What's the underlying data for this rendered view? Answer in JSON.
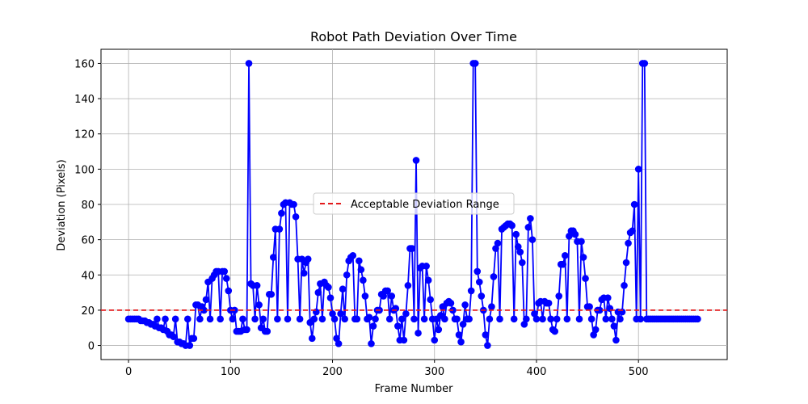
{
  "chart_data": {
    "type": "line",
    "title": "Robot Path Deviation Over Time",
    "xlabel": "Frame Number",
    "ylabel": "Deviation (Pixels)",
    "xlim": [
      -27,
      587
    ],
    "ylim": [
      -8,
      168
    ],
    "xticks": [
      0,
      100,
      200,
      300,
      400,
      500
    ],
    "yticks": [
      0,
      20,
      40,
      60,
      80,
      100,
      120,
      140,
      160
    ],
    "grid": true,
    "legend_location": "center",
    "reference_line": {
      "y": 20,
      "label": "Acceptable Deviation Range",
      "style": "dashed",
      "color": "#e41a1c"
    },
    "series": [
      {
        "line_color": "#0000ff",
        "marker": "circle",
        "points": [
          [
            0,
            15
          ],
          [
            2,
            15
          ],
          [
            4,
            15
          ],
          [
            6,
            15
          ],
          [
            8,
            15
          ],
          [
            10,
            15
          ],
          [
            12,
            14
          ],
          [
            14,
            14
          ],
          [
            16,
            14
          ],
          [
            18,
            13
          ],
          [
            20,
            13
          ],
          [
            22,
            12
          ],
          [
            24,
            12
          ],
          [
            26,
            11
          ],
          [
            28,
            15
          ],
          [
            30,
            10
          ],
          [
            32,
            10
          ],
          [
            34,
            9
          ],
          [
            36,
            15
          ],
          [
            38,
            8
          ],
          [
            40,
            6
          ],
          [
            42,
            6
          ],
          [
            44,
            5
          ],
          [
            46,
            15
          ],
          [
            48,
            2
          ],
          [
            50,
            2
          ],
          [
            52,
            1
          ],
          [
            54,
            1
          ],
          [
            56,
            0
          ],
          [
            58,
            15
          ],
          [
            60,
            0
          ],
          [
            62,
            4
          ],
          [
            64,
            4
          ],
          [
            66,
            23
          ],
          [
            68,
            23
          ],
          [
            70,
            15
          ],
          [
            72,
            22
          ],
          [
            74,
            20
          ],
          [
            76,
            26
          ],
          [
            78,
            36
          ],
          [
            80,
            15
          ],
          [
            82,
            38
          ],
          [
            84,
            40
          ],
          [
            86,
            42
          ],
          [
            88,
            42
          ],
          [
            90,
            15
          ],
          [
            92,
            42
          ],
          [
            94,
            42
          ],
          [
            96,
            38
          ],
          [
            98,
            31
          ],
          [
            100,
            20
          ],
          [
            102,
            15
          ],
          [
            104,
            20
          ],
          [
            106,
            8
          ],
          [
            108,
            8
          ],
          [
            110,
            8
          ],
          [
            112,
            15
          ],
          [
            114,
            9
          ],
          [
            116,
            9
          ],
          [
            118,
            160
          ],
          [
            120,
            35
          ],
          [
            122,
            34
          ],
          [
            124,
            15
          ],
          [
            126,
            34
          ],
          [
            128,
            23
          ],
          [
            130,
            10
          ],
          [
            132,
            15
          ],
          [
            134,
            8
          ],
          [
            136,
            8
          ],
          [
            138,
            29
          ],
          [
            140,
            29
          ],
          [
            142,
            50
          ],
          [
            144,
            66
          ],
          [
            146,
            15
          ],
          [
            148,
            66
          ],
          [
            150,
            75
          ],
          [
            152,
            80
          ],
          [
            154,
            81
          ],
          [
            156,
            15
          ],
          [
            158,
            81
          ],
          [
            160,
            80
          ],
          [
            162,
            80
          ],
          [
            164,
            73
          ],
          [
            166,
            49
          ],
          [
            168,
            15
          ],
          [
            170,
            49
          ],
          [
            172,
            41
          ],
          [
            174,
            47
          ],
          [
            176,
            49
          ],
          [
            178,
            13
          ],
          [
            180,
            4
          ],
          [
            182,
            15
          ],
          [
            184,
            19
          ],
          [
            186,
            30
          ],
          [
            188,
            35
          ],
          [
            190,
            15
          ],
          [
            192,
            36
          ],
          [
            194,
            34
          ],
          [
            196,
            33
          ],
          [
            198,
            27
          ],
          [
            200,
            18
          ],
          [
            202,
            15
          ],
          [
            204,
            4
          ],
          [
            206,
            1
          ],
          [
            208,
            18
          ],
          [
            210,
            32
          ],
          [
            212,
            15
          ],
          [
            214,
            40
          ],
          [
            216,
            48
          ],
          [
            218,
            50
          ],
          [
            220,
            51
          ],
          [
            222,
            15
          ],
          [
            224,
            15
          ],
          [
            226,
            48
          ],
          [
            228,
            43
          ],
          [
            230,
            37
          ],
          [
            232,
            28
          ],
          [
            234,
            15
          ],
          [
            236,
            16
          ],
          [
            238,
            1
          ],
          [
            240,
            11
          ],
          [
            242,
            15
          ],
          [
            244,
            20
          ],
          [
            246,
            20
          ],
          [
            248,
            29
          ],
          [
            250,
            28
          ],
          [
            252,
            31
          ],
          [
            254,
            31
          ],
          [
            256,
            15
          ],
          [
            258,
            28
          ],
          [
            260,
            20
          ],
          [
            262,
            21
          ],
          [
            264,
            11
          ],
          [
            266,
            3
          ],
          [
            268,
            15
          ],
          [
            270,
            3
          ],
          [
            272,
            18
          ],
          [
            274,
            34
          ],
          [
            276,
            55
          ],
          [
            278,
            55
          ],
          [
            280,
            15
          ],
          [
            282,
            105
          ],
          [
            284,
            7
          ],
          [
            286,
            44
          ],
          [
            288,
            45
          ],
          [
            290,
            15
          ],
          [
            292,
            45
          ],
          [
            294,
            37
          ],
          [
            296,
            26
          ],
          [
            298,
            15
          ],
          [
            300,
            3
          ],
          [
            302,
            15
          ],
          [
            304,
            9
          ],
          [
            306,
            17
          ],
          [
            308,
            22
          ],
          [
            310,
            15
          ],
          [
            312,
            24
          ],
          [
            314,
            25
          ],
          [
            316,
            24
          ],
          [
            318,
            20
          ],
          [
            320,
            15
          ],
          [
            322,
            15
          ],
          [
            324,
            6
          ],
          [
            326,
            2
          ],
          [
            328,
            12
          ],
          [
            330,
            23
          ],
          [
            332,
            15
          ],
          [
            334,
            15
          ],
          [
            336,
            31
          ],
          [
            338,
            160
          ],
          [
            340,
            160
          ],
          [
            342,
            42
          ],
          [
            344,
            36
          ],
          [
            346,
            28
          ],
          [
            348,
            20
          ],
          [
            350,
            6
          ],
          [
            352,
            0
          ],
          [
            354,
            15
          ],
          [
            356,
            22
          ],
          [
            358,
            39
          ],
          [
            360,
            55
          ],
          [
            362,
            58
          ],
          [
            364,
            15
          ],
          [
            366,
            66
          ],
          [
            368,
            67
          ],
          [
            370,
            68
          ],
          [
            372,
            69
          ],
          [
            374,
            69
          ],
          [
            376,
            68
          ],
          [
            378,
            15
          ],
          [
            380,
            63
          ],
          [
            382,
            56
          ],
          [
            384,
            53
          ],
          [
            386,
            47
          ],
          [
            388,
            12
          ],
          [
            390,
            15
          ],
          [
            392,
            67
          ],
          [
            394,
            72
          ],
          [
            396,
            60
          ],
          [
            398,
            18
          ],
          [
            400,
            15
          ],
          [
            402,
            24
          ],
          [
            404,
            25
          ],
          [
            406,
            15
          ],
          [
            408,
            25
          ],
          [
            410,
            24
          ],
          [
            412,
            24
          ],
          [
            414,
            15
          ],
          [
            416,
            9
          ],
          [
            418,
            8
          ],
          [
            420,
            15
          ],
          [
            422,
            28
          ],
          [
            424,
            46
          ],
          [
            426,
            46
          ],
          [
            428,
            51
          ],
          [
            430,
            15
          ],
          [
            432,
            62
          ],
          [
            434,
            65
          ],
          [
            436,
            65
          ],
          [
            438,
            63
          ],
          [
            440,
            59
          ],
          [
            442,
            15
          ],
          [
            444,
            59
          ],
          [
            446,
            50
          ],
          [
            448,
            38
          ],
          [
            450,
            22
          ],
          [
            452,
            22
          ],
          [
            454,
            15
          ],
          [
            456,
            6
          ],
          [
            458,
            9
          ],
          [
            460,
            20
          ],
          [
            462,
            20
          ],
          [
            464,
            26
          ],
          [
            466,
            27
          ],
          [
            468,
            15
          ],
          [
            470,
            27
          ],
          [
            472,
            21
          ],
          [
            474,
            15
          ],
          [
            476,
            11
          ],
          [
            478,
            3
          ],
          [
            480,
            19
          ],
          [
            482,
            15
          ],
          [
            484,
            19
          ],
          [
            486,
            34
          ],
          [
            488,
            47
          ],
          [
            490,
            58
          ],
          [
            492,
            64
          ],
          [
            494,
            65
          ],
          [
            496,
            80
          ],
          [
            498,
            15
          ],
          [
            500,
            100
          ],
          [
            502,
            15
          ],
          [
            504,
            160
          ],
          [
            506,
            160
          ],
          [
            508,
            15
          ],
          [
            510,
            15
          ],
          [
            512,
            15
          ],
          [
            514,
            15
          ],
          [
            516,
            15
          ],
          [
            518,
            15
          ],
          [
            520,
            15
          ],
          [
            522,
            15
          ],
          [
            524,
            15
          ],
          [
            526,
            15
          ],
          [
            528,
            15
          ],
          [
            530,
            15
          ],
          [
            532,
            15
          ],
          [
            534,
            15
          ],
          [
            536,
            15
          ],
          [
            538,
            15
          ],
          [
            540,
            15
          ],
          [
            542,
            15
          ],
          [
            544,
            15
          ],
          [
            546,
            15
          ],
          [
            548,
            15
          ],
          [
            550,
            15
          ],
          [
            552,
            15
          ],
          [
            554,
            15
          ],
          [
            556,
            15
          ],
          [
            558,
            15
          ]
        ]
      }
    ]
  }
}
